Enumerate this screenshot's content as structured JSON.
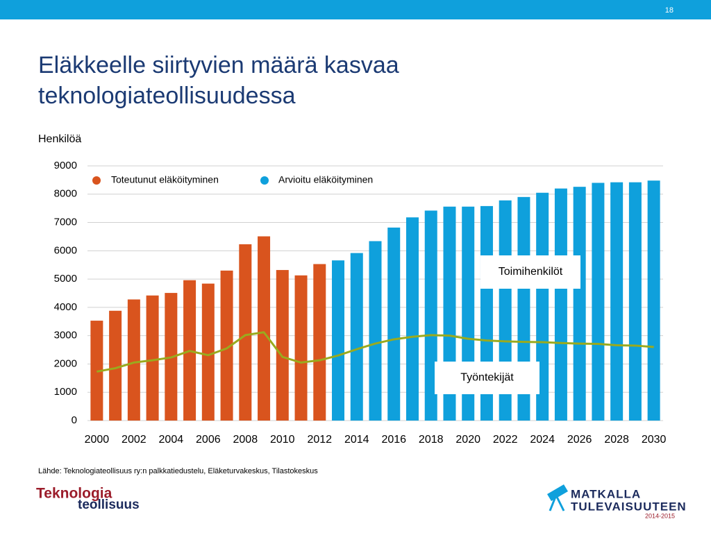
{
  "page_number": "18",
  "source": "Lähde: Teknologiateollisuus ry:n palkkatiedustelu, Eläketurvakeskus, Tilastokeskus",
  "logos": {
    "left": [
      "Teknologia",
      "teollisuus"
    ],
    "right": [
      "MATKALLA",
      "TULEVAISUUTEEN",
      "2014-2015"
    ]
  },
  "chart_data": {
    "type": "bar",
    "title": [
      "Eläkkeelle siirtyvien määrä kasvaa",
      "teknologiateollisuudessa"
    ],
    "y_label": "Henkilöä",
    "categories": [
      "2000",
      null,
      "2002",
      null,
      "2004",
      null,
      "2006",
      null,
      "2008",
      null,
      "2010",
      null,
      "2012",
      null,
      "2014",
      null,
      "2016",
      null,
      "2018",
      null,
      "2020",
      null,
      "2022",
      null,
      "2024",
      null,
      "2026",
      null,
      "2028",
      null,
      "2030"
    ],
    "series": [
      {
        "name": "Toteutunut eläköityminen",
        "color": "#d9541e",
        "values": [
          3530,
          3880,
          4280,
          4420,
          4510,
          4960,
          4840,
          5300,
          6230,
          6510,
          5320,
          5130,
          5530,
          null,
          null,
          null,
          null,
          null,
          null,
          null,
          null,
          null,
          null,
          null,
          null,
          null,
          null,
          null,
          null,
          null,
          null
        ]
      },
      {
        "name": "Arvioitu eläköityminen",
        "color": "#0fa0dc",
        "values": [
          null,
          null,
          null,
          null,
          null,
          null,
          null,
          null,
          null,
          null,
          null,
          null,
          null,
          5660,
          5920,
          6340,
          6820,
          7180,
          7420,
          7560,
          7560,
          7580,
          7780,
          7900,
          8050,
          8200,
          8260,
          8400,
          8420,
          8420,
          8480
        ]
      },
      {
        "type": "line",
        "color": "#9aaa1e",
        "values": [
          1730,
          1850,
          2050,
          2130,
          2230,
          2460,
          2310,
          2550,
          3020,
          3120,
          2250,
          2050,
          2130,
          2300,
          2520,
          2720,
          2870,
          2960,
          3020,
          3000,
          2890,
          2830,
          2800,
          2780,
          2770,
          2740,
          2720,
          2710,
          2660,
          2650,
          2600
        ]
      }
    ],
    "annotations": [
      "Toimihenkilöt",
      "Työntekijät"
    ],
    "ylim": [
      0,
      9000
    ],
    "yticks": [
      0,
      1000,
      2000,
      3000,
      4000,
      5000,
      6000,
      7000,
      8000,
      9000
    ],
    "grid": true
  }
}
